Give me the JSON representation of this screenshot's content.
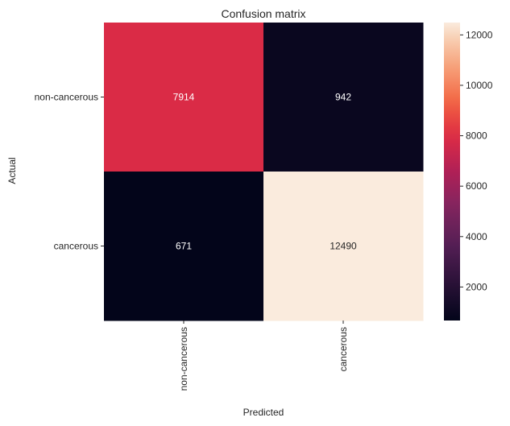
{
  "chart_data": {
    "type": "heatmap",
    "title": "Confusion matrix",
    "xlabel": "Predicted",
    "ylabel": "Actual",
    "x_categories": [
      "non-cancerous",
      "cancerous"
    ],
    "y_categories": [
      "non-cancerous",
      "cancerous"
    ],
    "values": [
      [
        7914,
        942
      ],
      [
        671,
        12490
      ]
    ],
    "colorbar": {
      "min": 671,
      "max": 12490,
      "ticks": [
        2000,
        4000,
        6000,
        8000,
        10000,
        12000
      ],
      "tick_labels": [
        "2000",
        "4000",
        "6000",
        "8000",
        "10000",
        "12000"
      ],
      "colormap": "rocket"
    },
    "annotation_text_color_dark_cells": "#ffffff",
    "annotation_text_color_light_cells": "#262626"
  }
}
